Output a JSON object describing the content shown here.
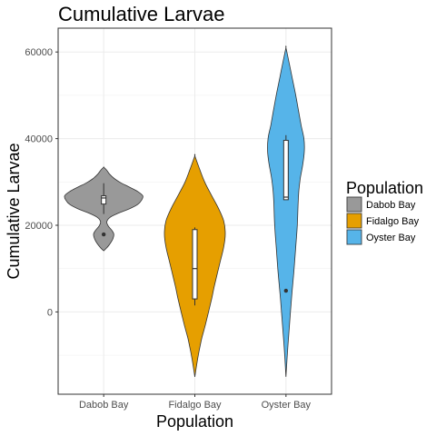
{
  "chart_data": {
    "type": "violin",
    "title": "Cumulative Larvae",
    "xlabel": "Population",
    "ylabel": "Cumulative Larvae",
    "ylim": [
      -19000,
      65500
    ],
    "yticks": [
      0,
      20000,
      40000,
      60000
    ],
    "ytick_labels": [
      "0",
      "20000",
      "40000",
      "60000"
    ],
    "grid": true,
    "legend": {
      "title": "Population",
      "position": "right",
      "entries": [
        "Dabob Bay",
        "Fidalgo Bay",
        "Oyster Bay"
      ]
    },
    "categories": [
      "Dabob Bay",
      "Fidalgo Bay",
      "Oyster Bay"
    ],
    "series": [
      {
        "name": "Dabob Bay",
        "color": "#999999",
        "box": {
          "min": 22600,
          "q1": 24900,
          "median": 26300,
          "q3": 26800,
          "max": 29700
        },
        "outliers": [
          17900
        ],
        "violin": [
          [
            14100,
            0.0
          ],
          [
            14800,
            0.08
          ],
          [
            15700,
            0.16
          ],
          [
            16800,
            0.23
          ],
          [
            17900,
            0.26
          ],
          [
            18800,
            0.21
          ],
          [
            19800,
            0.12
          ],
          [
            20800,
            0.08
          ],
          [
            21800,
            0.16
          ],
          [
            22800,
            0.38
          ],
          [
            23800,
            0.66
          ],
          [
            24800,
            0.87
          ],
          [
            25800,
            0.97
          ],
          [
            26800,
            1.0
          ],
          [
            27800,
            0.87
          ],
          [
            28800,
            0.66
          ],
          [
            29800,
            0.44
          ],
          [
            30800,
            0.27
          ],
          [
            31800,
            0.15
          ],
          [
            32800,
            0.07
          ],
          [
            33400,
            0.0
          ]
        ]
      },
      {
        "name": "Fidalgo Bay",
        "color": "#E69F00",
        "box": {
          "min": 1500,
          "q1": 3000,
          "median": 10000,
          "q3": 19000,
          "max": 19500
        },
        "outliers": [],
        "violin": [
          [
            -15000,
            0.0
          ],
          [
            -12000,
            0.05
          ],
          [
            -9000,
            0.11
          ],
          [
            -6000,
            0.18
          ],
          [
            -3000,
            0.27
          ],
          [
            0,
            0.35
          ],
          [
            3000,
            0.43
          ],
          [
            6000,
            0.5
          ],
          [
            9000,
            0.58
          ],
          [
            12000,
            0.66
          ],
          [
            15000,
            0.74
          ],
          [
            18000,
            0.78
          ],
          [
            21000,
            0.74
          ],
          [
            24000,
            0.6
          ],
          [
            27000,
            0.42
          ],
          [
            30000,
            0.25
          ],
          [
            33000,
            0.12
          ],
          [
            36000,
            0.0
          ]
        ]
      },
      {
        "name": "Oyster Bay",
        "color": "#56B4E9",
        "box": {
          "min": 25900,
          "q1": 25900,
          "median": 26500,
          "q3": 39600,
          "max": 40800
        },
        "outliers": [
          4900
        ],
        "violin": [
          [
            -15000,
            0.0
          ],
          [
            -9000,
            0.04
          ],
          [
            -3000,
            0.09
          ],
          [
            3000,
            0.14
          ],
          [
            9000,
            0.2
          ],
          [
            15000,
            0.25
          ],
          [
            20000,
            0.29
          ],
          [
            25000,
            0.31
          ],
          [
            28000,
            0.33
          ],
          [
            31000,
            0.37
          ],
          [
            34000,
            0.43
          ],
          [
            37000,
            0.47
          ],
          [
            40000,
            0.46
          ],
          [
            43000,
            0.39
          ],
          [
            46000,
            0.33
          ],
          [
            50000,
            0.25
          ],
          [
            54000,
            0.16
          ],
          [
            58000,
            0.07
          ],
          [
            61000,
            0.0
          ]
        ]
      }
    ]
  }
}
